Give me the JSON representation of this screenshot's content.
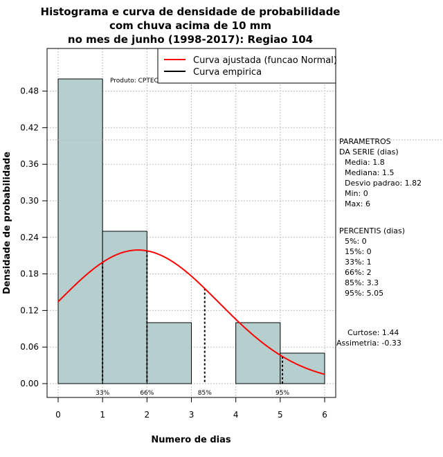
{
  "chart_data": {
    "type": "bar",
    "title_lines": [
      "Histograma e curva de densidade de probabilidade",
      "com chuva acima de 10 mm",
      "no mes de junho (1998-2017): Regiao 104"
    ],
    "xlabel": "Numero de dias",
    "ylabel": "Densidade de probabilidade",
    "xlim": [
      0,
      6
    ],
    "ylim": [
      0,
      0.54
    ],
    "x_ticks": [
      0,
      1,
      2,
      3,
      4,
      5,
      6
    ],
    "y_ticks": [
      0.0,
      0.06,
      0.12,
      0.18,
      0.24,
      0.3,
      0.36,
      0.42,
      0.48
    ],
    "y_tick_labels": [
      "0.00",
      "0.06",
      "0.12",
      "0.18",
      "0.24",
      "0.30",
      "0.36",
      "0.42",
      "0.48"
    ],
    "grid": true,
    "bins": [
      {
        "start": 0,
        "end": 1,
        "value": 0.5
      },
      {
        "start": 1,
        "end": 2,
        "value": 0.25
      },
      {
        "start": 2,
        "end": 3,
        "value": 0.1
      },
      {
        "start": 3,
        "end": 4,
        "value": 0.0
      },
      {
        "start": 4,
        "end": 5,
        "value": 0.1
      },
      {
        "start": 5,
        "end": 6,
        "value": 0.05
      }
    ],
    "bar_color": "#b7cece",
    "normal_curve": {
      "mean": 1.8,
      "sd": 1.82,
      "color": "#ff0000",
      "name": "Curva ajustada (funcao Normal)"
    },
    "empirical_curve": {
      "color": "#000000",
      "name": "Curva empirica"
    },
    "percentile_markers": [
      {
        "x": 1.0,
        "label": "33%"
      },
      {
        "x": 2.0,
        "label": "66%"
      },
      {
        "x": 3.3,
        "label": "85%"
      },
      {
        "x": 5.05,
        "label": "95%"
      }
    ],
    "legend_position": "top-right",
    "watermark": "Produto: CPTEC/INPE",
    "stats_parametros": [
      "PARAMETROS",
      "DA SERIE (dias)",
      "Media: 1.8",
      "Mediana: 1.5",
      "Desvio padrao: 1.82",
      "Min: 0",
      "Max: 6"
    ],
    "stats_percentis": [
      "PERCENTIS (dias)",
      "5%: 0",
      "15%: 0",
      "33%: 1",
      "66%: 2",
      "85%: 3.3",
      "95%: 5.05"
    ],
    "stats_shape": [
      "Curtose: 1.44",
      "Assimetria: -0.33"
    ]
  }
}
